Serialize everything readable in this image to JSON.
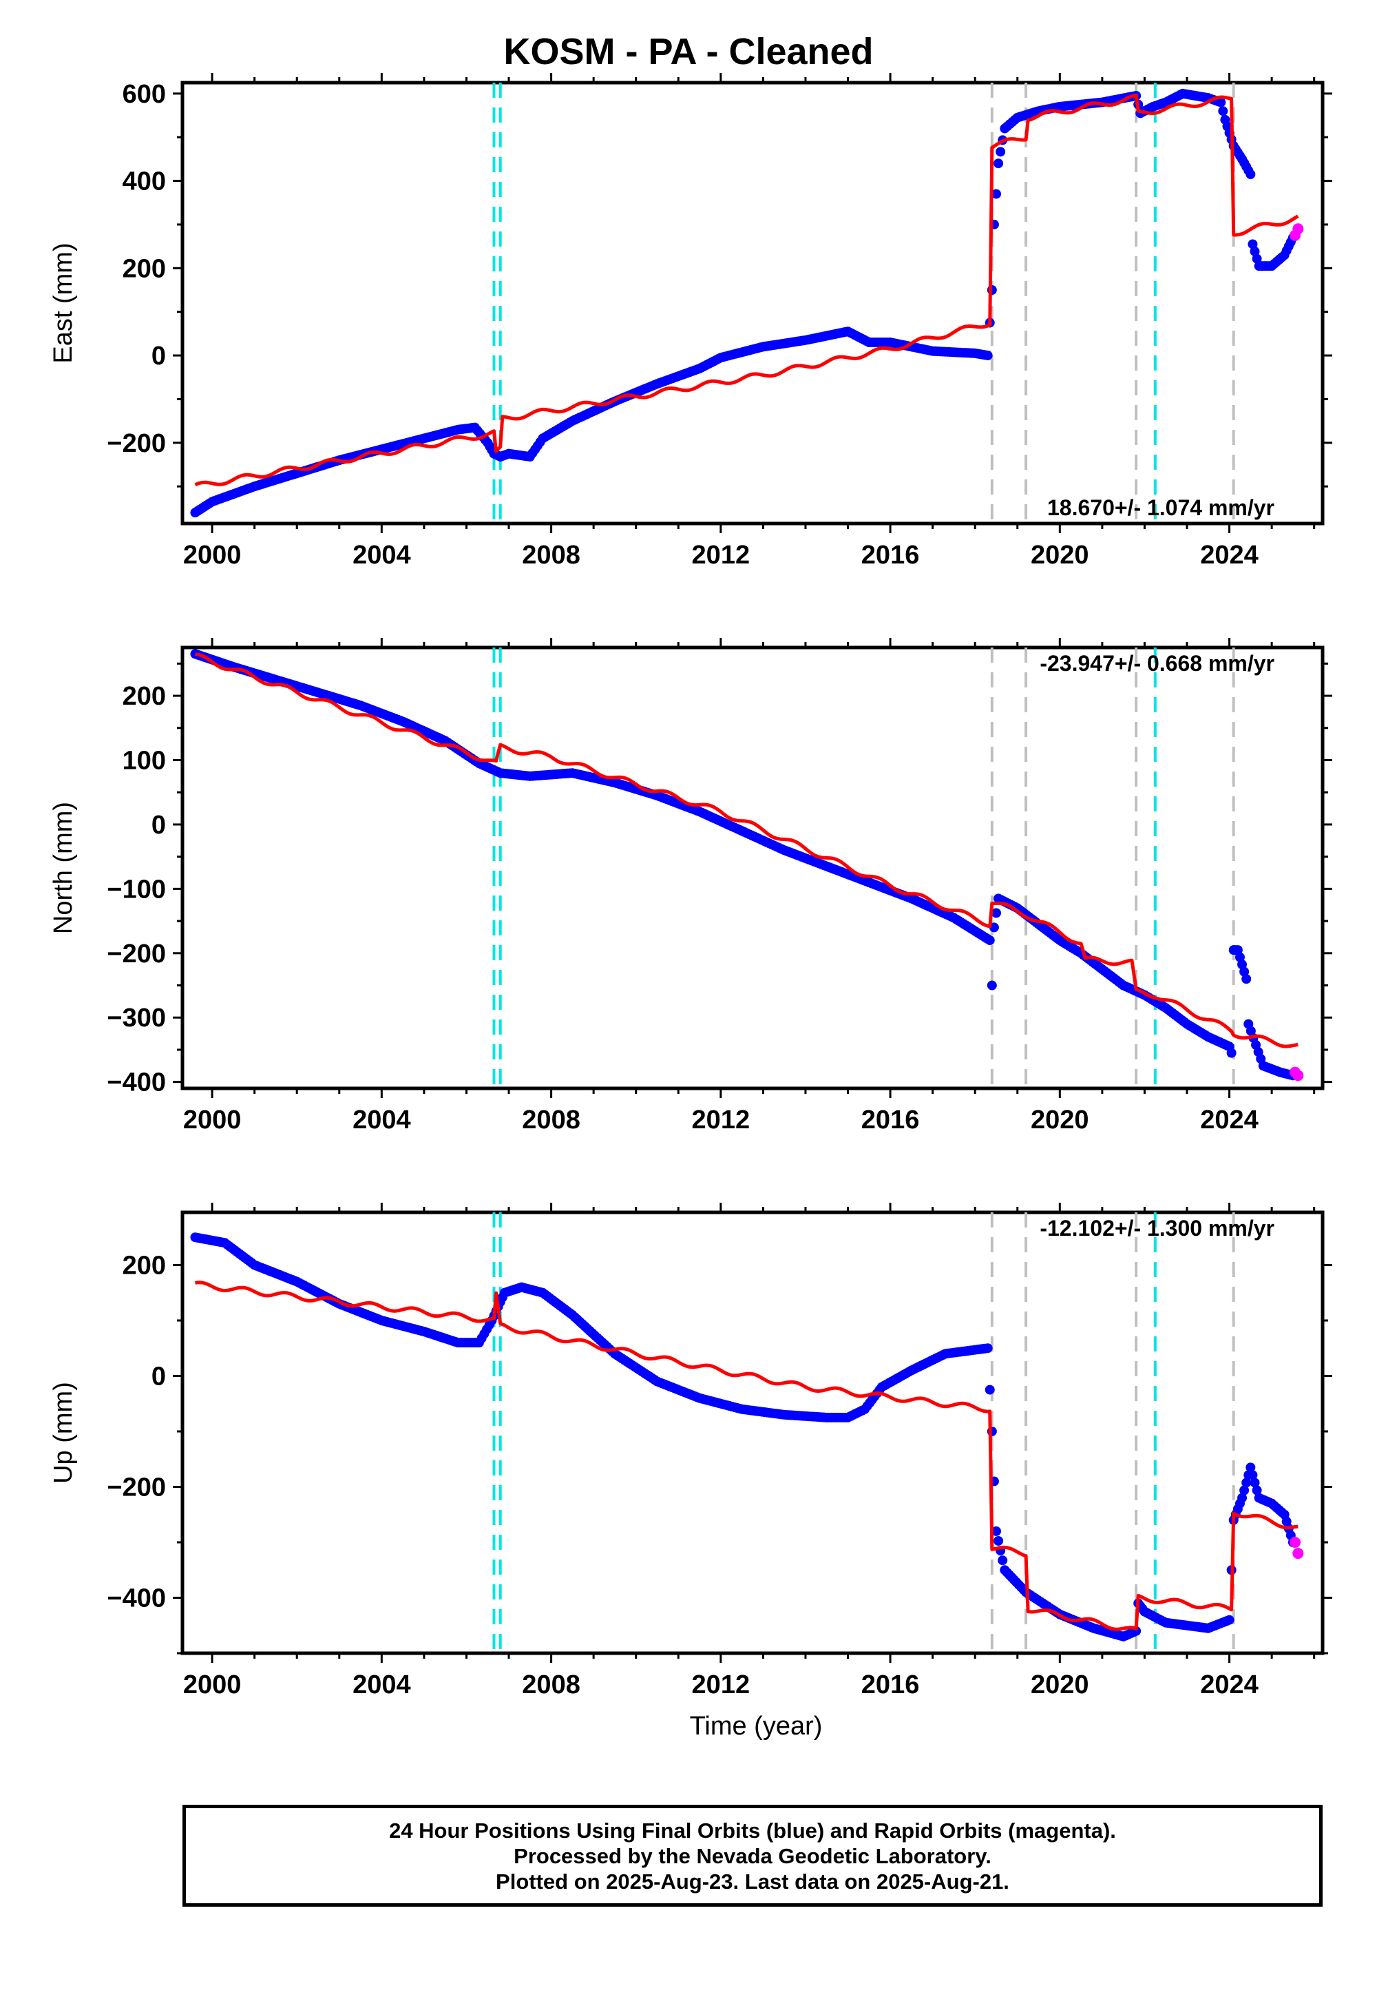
{
  "page_title": "KOSM  - PA - Cleaned",
  "x_axis_title": "Time (year)",
  "footer": {
    "line1": "24 Hour Positions Using Final Orbits (blue) and Rapid Orbits (magenta).",
    "line2": "Processed by the Nevada Geodetic Laboratory.",
    "line3": "Plotted on 2025-Aug-23. Last data on 2025-Aug-21."
  },
  "colors": {
    "final_orbits": "#0000ff",
    "rapid_orbits": "#ff00ff",
    "model": "#ff0000",
    "equipment_change": "#c0c0c0",
    "earthquake": "#00e5e5"
  },
  "chart_data": [
    {
      "type": "scatter",
      "title": "KOSM  - PA - Cleaned",
      "xlabel": "",
      "ylabel": "East (mm)",
      "xlim": [
        1999.3,
        2026.2
      ],
      "ylim": [
        -385,
        625
      ],
      "xticks": [
        2000,
        2004,
        2008,
        2012,
        2016,
        2020,
        2024
      ],
      "yticks": [
        -200,
        0,
        200,
        400,
        600
      ],
      "rate_label": "18.670+/- 1.074 mm/yr",
      "rate_position": "bottom-right",
      "gray_dashed_lines": [
        2018.4,
        2019.2,
        2021.8,
        2024.1
      ],
      "cyan_dashed_lines": [
        2006.65,
        2006.8,
        2022.25
      ],
      "observed": [
        [
          1999.6,
          -360
        ],
        [
          2000.0,
          -335
        ],
        [
          2001.0,
          -300
        ],
        [
          2002.0,
          -270
        ],
        [
          2003.0,
          -240
        ],
        [
          2004.0,
          -215
        ],
        [
          2005.0,
          -190
        ],
        [
          2005.8,
          -170
        ],
        [
          2006.2,
          -165
        ],
        [
          2006.5,
          -200
        ],
        [
          2006.65,
          -225
        ],
        [
          2006.8,
          -232
        ],
        [
          2007.0,
          -225
        ],
        [
          2007.5,
          -232
        ],
        [
          2007.8,
          -190
        ],
        [
          2008.5,
          -150
        ],
        [
          2009.5,
          -105
        ],
        [
          2010.5,
          -65
        ],
        [
          2011.5,
          -30
        ],
        [
          2012.0,
          -5
        ],
        [
          2013.0,
          20
        ],
        [
          2014.0,
          35
        ],
        [
          2015.0,
          55
        ],
        [
          2015.5,
          30
        ],
        [
          2016.0,
          30
        ],
        [
          2017.0,
          10
        ],
        [
          2018.0,
          5
        ],
        [
          2018.3,
          0
        ],
        [
          2018.4,
          150
        ],
        [
          2018.45,
          300
        ],
        [
          2018.55,
          440
        ],
        [
          2018.7,
          520
        ],
        [
          2019.0,
          545
        ],
        [
          2019.5,
          560
        ],
        [
          2020.0,
          570
        ],
        [
          2021.0,
          580
        ],
        [
          2021.8,
          595
        ],
        [
          2021.9,
          555
        ],
        [
          2022.2,
          570
        ],
        [
          2022.5,
          580
        ],
        [
          2022.9,
          600
        ],
        [
          2023.5,
          590
        ],
        [
          2023.8,
          580
        ],
        [
          2023.9,
          540
        ],
        [
          2024.1,
          480
        ],
        [
          2024.3,
          450
        ],
        [
          2024.5,
          415
        ],
        [
          2024.55,
          255
        ],
        [
          2024.7,
          205
        ],
        [
          2025.0,
          205
        ],
        [
          2025.3,
          230
        ],
        [
          2025.5,
          270
        ]
      ],
      "rapid": [
        [
          2025.55,
          275
        ],
        [
          2025.62,
          290
        ]
      ],
      "model": [
        [
          1999.6,
          -300
        ],
        [
          2006.65,
          -178
        ],
        [
          2006.7,
          -225
        ],
        [
          2006.8,
          -215
        ],
        [
          2006.85,
          -145
        ],
        [
          2009.0,
          -110
        ],
        [
          2013.0,
          -45
        ],
        [
          2016.0,
          15
        ],
        [
          2018.35,
          75
        ],
        [
          2018.4,
          480
        ],
        [
          2019.2,
          500
        ],
        [
          2019.25,
          545
        ],
        [
          2021.8,
          590
        ],
        [
          2021.85,
          555
        ],
        [
          2024.05,
          590
        ],
        [
          2024.1,
          280
        ],
        [
          2025.62,
          315
        ]
      ]
    },
    {
      "type": "scatter",
      "xlabel": "",
      "ylabel": "North (mm)",
      "xlim": [
        1999.3,
        2026.2
      ],
      "ylim": [
        -410,
        275
      ],
      "xticks": [
        2000,
        2004,
        2008,
        2012,
        2016,
        2020,
        2024
      ],
      "yticks": [
        -400,
        -300,
        -200,
        -100,
        0,
        100,
        200
      ],
      "rate_label": "-23.947+/- 0.668 mm/yr",
      "rate_position": "top-right",
      "gray_dashed_lines": [
        2018.4,
        2019.2,
        2021.8,
        2024.1
      ],
      "cyan_dashed_lines": [
        2006.65,
        2006.8,
        2022.25
      ],
      "observed": [
        [
          1999.6,
          265
        ],
        [
          2000.5,
          245
        ],
        [
          2001.5,
          225
        ],
        [
          2002.5,
          205
        ],
        [
          2003.5,
          185
        ],
        [
          2004.5,
          160
        ],
        [
          2005.5,
          130
        ],
        [
          2006.3,
          95
        ],
        [
          2006.8,
          80
        ],
        [
          2007.5,
          75
        ],
        [
          2008.5,
          80
        ],
        [
          2009.5,
          65
        ],
        [
          2010.5,
          45
        ],
        [
          2011.5,
          20
        ],
        [
          2012.5,
          -10
        ],
        [
          2013.5,
          -40
        ],
        [
          2014.5,
          -65
        ],
        [
          2015.5,
          -90
        ],
        [
          2016.5,
          -115
        ],
        [
          2017.5,
          -145
        ],
        [
          2018.35,
          -180
        ],
        [
          2018.4,
          -250
        ],
        [
          2018.45,
          -160
        ],
        [
          2018.55,
          -115
        ],
        [
          2019.0,
          -130
        ],
        [
          2019.5,
          -155
        ],
        [
          2020.0,
          -180
        ],
        [
          2020.5,
          -200
        ],
        [
          2021.0,
          -225
        ],
        [
          2021.5,
          -250
        ],
        [
          2022.0,
          -265
        ],
        [
          2022.5,
          -285
        ],
        [
          2023.0,
          -310
        ],
        [
          2023.5,
          -330
        ],
        [
          2024.0,
          -345
        ],
        [
          2024.05,
          -355
        ],
        [
          2024.1,
          -195
        ],
        [
          2024.2,
          -195
        ],
        [
          2024.4,
          -240
        ],
        [
          2024.45,
          -310
        ],
        [
          2024.8,
          -375
        ],
        [
          2025.2,
          -385
        ],
        [
          2025.5,
          -390
        ]
      ],
      "rapid": [
        [
          2025.55,
          -385
        ],
        [
          2025.62,
          -390
        ]
      ],
      "model": [
        [
          1999.6,
          262
        ],
        [
          2006.7,
          95
        ],
        [
          2006.8,
          120
        ],
        [
          2008.0,
          105
        ],
        [
          2012.0,
          20
        ],
        [
          2016.0,
          -95
        ],
        [
          2018.35,
          -155
        ],
        [
          2018.4,
          -120
        ],
        [
          2019.2,
          -140
        ],
        [
          2020.5,
          -185
        ],
        [
          2020.6,
          -210
        ],
        [
          2021.7,
          -215
        ],
        [
          2021.8,
          -260
        ],
        [
          2022.25,
          -265
        ],
        [
          2024.05,
          -320
        ],
        [
          2024.1,
          -325
        ],
        [
          2025.62,
          -345
        ]
      ]
    },
    {
      "type": "scatter",
      "xlabel": "Time (year)",
      "ylabel": "Up (mm)",
      "xlim": [
        1999.3,
        2026.2
      ],
      "ylim": [
        -500,
        295
      ],
      "xticks": [
        2000,
        2004,
        2008,
        2012,
        2016,
        2020,
        2024
      ],
      "yticks": [
        -400,
        -200,
        0,
        200
      ],
      "rate_label": "-12.102+/- 1.300 mm/yr",
      "rate_position": "top-right",
      "gray_dashed_lines": [
        2018.4,
        2019.2,
        2021.8,
        2024.1
      ],
      "cyan_dashed_lines": [
        2006.65,
        2006.8,
        2022.25
      ],
      "observed": [
        [
          1999.6,
          250
        ],
        [
          2000.3,
          240
        ],
        [
          2001.0,
          200
        ],
        [
          2002.0,
          170
        ],
        [
          2003.0,
          130
        ],
        [
          2004.0,
          100
        ],
        [
          2005.0,
          80
        ],
        [
          2005.8,
          60
        ],
        [
          2006.3,
          60
        ],
        [
          2006.6,
          100
        ],
        [
          2006.9,
          150
        ],
        [
          2007.3,
          160
        ],
        [
          2007.8,
          150
        ],
        [
          2008.5,
          110
        ],
        [
          2009.5,
          40
        ],
        [
          2010.5,
          -10
        ],
        [
          2011.5,
          -40
        ],
        [
          2012.5,
          -60
        ],
        [
          2013.5,
          -70
        ],
        [
          2014.5,
          -75
        ],
        [
          2015.0,
          -75
        ],
        [
          2015.4,
          -60
        ],
        [
          2015.8,
          -20
        ],
        [
          2016.5,
          10
        ],
        [
          2017.3,
          40
        ],
        [
          2018.3,
          50
        ],
        [
          2018.4,
          -100
        ],
        [
          2018.5,
          -280
        ],
        [
          2018.7,
          -350
        ],
        [
          2019.2,
          -390
        ],
        [
          2020.0,
          -430
        ],
        [
          2020.8,
          -455
        ],
        [
          2021.5,
          -470
        ],
        [
          2021.8,
          -460
        ],
        [
          2021.85,
          -410
        ],
        [
          2022.0,
          -425
        ],
        [
          2022.5,
          -445
        ],
        [
          2023.0,
          -450
        ],
        [
          2023.5,
          -455
        ],
        [
          2024.0,
          -440
        ],
        [
          2024.1,
          -260
        ],
        [
          2024.2,
          -240
        ],
        [
          2024.3,
          -220
        ],
        [
          2024.5,
          -165
        ],
        [
          2024.7,
          -220
        ],
        [
          2025.0,
          -230
        ],
        [
          2025.3,
          -250
        ],
        [
          2025.5,
          -300
        ]
      ],
      "rapid": [
        [
          2025.55,
          -300
        ],
        [
          2025.62,
          -320
        ]
      ],
      "model": [
        [
          1999.6,
          165
        ],
        [
          2006.65,
          100
        ],
        [
          2006.7,
          145
        ],
        [
          2006.8,
          90
        ],
        [
          2010.0,
          40
        ],
        [
          2014.0,
          -20
        ],
        [
          2018.35,
          -60
        ],
        [
          2018.4,
          -310
        ],
        [
          2019.2,
          -320
        ],
        [
          2019.25,
          -420
        ],
        [
          2021.8,
          -460
        ],
        [
          2021.85,
          -400
        ],
        [
          2024.05,
          -420
        ],
        [
          2024.1,
          -245
        ],
        [
          2025.62,
          -275
        ]
      ]
    }
  ]
}
